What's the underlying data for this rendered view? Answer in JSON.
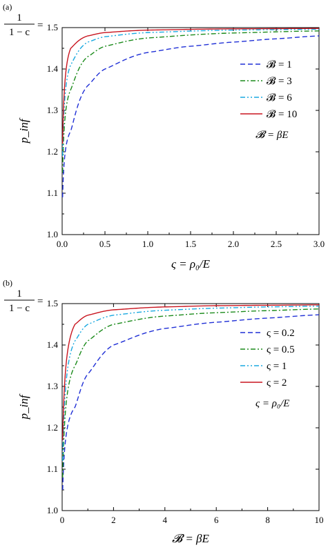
{
  "chart_data": [
    {
      "panel_label": "(a)",
      "type": "line",
      "xlabel": "ς = ρ₀/E",
      "ylabel": "p_inf",
      "xlim": [
        0,
        3.0
      ],
      "ylim": [
        1.0,
        1.5
      ],
      "xticks": [
        "0.0",
        "0.5",
        "1.0",
        "1.5",
        "2.0",
        "2.5",
        "3.0"
      ],
      "yticks": [
        "1.0",
        "1.1",
        "1.2",
        "1.3",
        "1.4",
        "1.5"
      ],
      "ytick_top_prefix": "1/(1 − c) =",
      "frac_num": "1",
      "frac_den": "1 − c",
      "frac_eq": "=",
      "legend_note": "𝓑 = βE",
      "legend_position": "right",
      "grid": false,
      "series": [
        {
          "name": "𝓑 = 1",
          "k": 1,
          "color": "#1f2fd6",
          "dash": "dashed",
          "points": [
            [
              0.005,
              1.09
            ],
            [
              0.1,
              1.25
            ],
            [
              0.3,
              1.36
            ],
            [
              0.5,
              1.4
            ],
            [
              1.0,
              1.44
            ],
            [
              1.5,
              1.455
            ],
            [
              2.0,
              1.465
            ],
            [
              2.5,
              1.473
            ],
            [
              3.0,
              1.48
            ]
          ]
        },
        {
          "name": "𝓑 = 3",
          "k": 3,
          "color": "#1a8a1a",
          "dash": "dashdot",
          "points": [
            [
              0.005,
              1.15
            ],
            [
              0.1,
              1.35
            ],
            [
              0.3,
              1.43
            ],
            [
              0.5,
              1.455
            ],
            [
              1.0,
              1.475
            ],
            [
              2.0,
              1.487
            ],
            [
              3.0,
              1.492
            ]
          ]
        },
        {
          "name": "𝓑 = 6",
          "k": 6,
          "color": "#18a8e0",
          "dash": "dashdotdot",
          "points": [
            [
              0.005,
              1.19
            ],
            [
              0.1,
              1.41
            ],
            [
              0.3,
              1.465
            ],
            [
              0.5,
              1.478
            ],
            [
              1.0,
              1.488
            ],
            [
              2.0,
              1.494
            ],
            [
              3.0,
              1.496
            ]
          ]
        },
        {
          "name": "𝓑 = 10",
          "k": 10,
          "color": "#c8141e",
          "dash": "solid",
          "points": [
            [
              0.005,
              1.22
            ],
            [
              0.1,
              1.45
            ],
            [
              0.3,
              1.48
            ],
            [
              0.5,
              1.488
            ],
            [
              1.0,
              1.494
            ],
            [
              2.0,
              1.497
            ],
            [
              3.0,
              1.498
            ]
          ]
        }
      ]
    },
    {
      "panel_label": "(b)",
      "type": "line",
      "xlabel": "𝓑 = βE",
      "ylabel": "p_inf",
      "xlim": [
        0,
        10
      ],
      "ylim": [
        1.0,
        1.5
      ],
      "xticks": [
        "0",
        "2",
        "4",
        "6",
        "8",
        "10"
      ],
      "yticks": [
        "1.0",
        "1.1",
        "1.2",
        "1.3",
        "1.4",
        "1.5"
      ],
      "ytick_top_prefix": "1/(1 − c) =",
      "frac_num": "1",
      "frac_den": "1 − c",
      "frac_eq": "=",
      "legend_note": "ς = ρ₀/E",
      "legend_position": "right",
      "grid": false,
      "series": [
        {
          "name": "ς = 0.2",
          "k": 0.2,
          "color": "#1f2fd6",
          "dash": "dashed",
          "points": [
            [
              0.02,
              1.05
            ],
            [
              0.5,
              1.25
            ],
            [
              1,
              1.33
            ],
            [
              2,
              1.4
            ],
            [
              4,
              1.44
            ],
            [
              6,
              1.455
            ],
            [
              8,
              1.465
            ],
            [
              10,
              1.473
            ]
          ]
        },
        {
          "name": "ς = 0.5",
          "k": 0.5,
          "color": "#1a8a1a",
          "dash": "dashdot",
          "points": [
            [
              0.02,
              1.08
            ],
            [
              0.5,
              1.35
            ],
            [
              1,
              1.41
            ],
            [
              2,
              1.45
            ],
            [
              4,
              1.47
            ],
            [
              6,
              1.478
            ],
            [
              8,
              1.483
            ],
            [
              10,
              1.487
            ]
          ]
        },
        {
          "name": "ς = 1",
          "k": 1,
          "color": "#18a8e0",
          "dash": "dashdotdot",
          "points": [
            [
              0.02,
              1.12
            ],
            [
              0.5,
              1.41
            ],
            [
              1,
              1.45
            ],
            [
              2,
              1.472
            ],
            [
              4,
              1.484
            ],
            [
              6,
              1.489
            ],
            [
              8,
              1.492
            ],
            [
              10,
              1.494
            ]
          ]
        },
        {
          "name": "ς = 2",
          "k": 2,
          "color": "#c8141e",
          "dash": "solid",
          "points": [
            [
              0.02,
              1.17
            ],
            [
              0.5,
              1.45
            ],
            [
              1,
              1.472
            ],
            [
              2,
              1.485
            ],
            [
              4,
              1.492
            ],
            [
              6,
              1.495
            ],
            [
              8,
              1.496
            ],
            [
              10,
              1.497
            ]
          ]
        }
      ]
    }
  ]
}
